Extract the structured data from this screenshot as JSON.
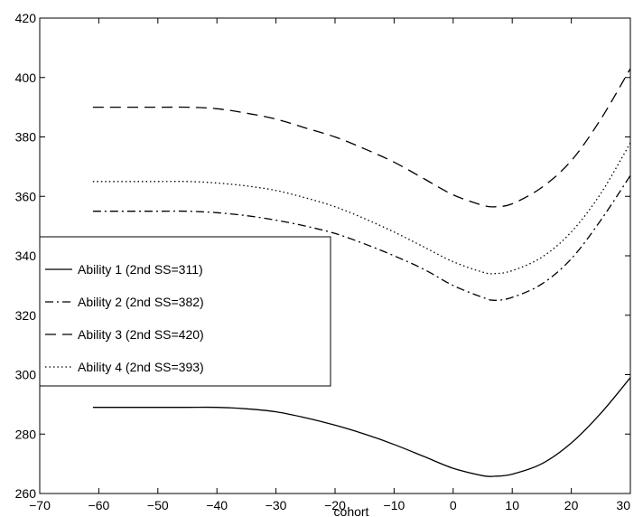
{
  "chart_data": {
    "type": "line",
    "title": "",
    "xlabel": "cohort",
    "ylabel": "",
    "xlim": [
      -70,
      30
    ],
    "ylim": [
      260,
      420
    ],
    "xticks": [
      -70,
      -60,
      -50,
      -40,
      -30,
      -20,
      -10,
      0,
      10,
      20,
      30
    ],
    "yticks": [
      260,
      280,
      300,
      320,
      340,
      360,
      380,
      400,
      420
    ],
    "grid": false,
    "legend_position": "middle-left",
    "series": [
      {
        "name": "Ability 1 (2nd SS=311)",
        "style": "solid",
        "color": "#000000",
        "x": [
          -61,
          -50,
          -45,
          -40,
          -35,
          -30,
          -25,
          -20,
          -15,
          -10,
          -5,
          0,
          5,
          7,
          10,
          15,
          20,
          25,
          30
        ],
        "y": [
          289,
          289,
          289,
          289,
          288.5,
          287.5,
          285.5,
          283,
          280,
          276.5,
          272.5,
          268.5,
          266,
          265.8,
          266.5,
          270,
          277,
          287,
          299
        ]
      },
      {
        "name": "Ability 2 (2nd SS=382)",
        "style": "dashdot",
        "color": "#000000",
        "x": [
          -61,
          -50,
          -45,
          -40,
          -35,
          -30,
          -25,
          -20,
          -15,
          -10,
          -5,
          0,
          5,
          7,
          10,
          15,
          20,
          25,
          30
        ],
        "y": [
          355,
          355,
          355,
          354.5,
          353.5,
          352,
          350,
          347.5,
          344,
          340,
          335.5,
          330,
          326,
          325,
          326,
          330.5,
          339,
          352,
          367
        ]
      },
      {
        "name": "Ability 3 (2nd SS=420)",
        "style": "dashed",
        "color": "#000000",
        "x": [
          -61,
          -50,
          -45,
          -40,
          -35,
          -30,
          -25,
          -20,
          -15,
          -10,
          -5,
          0,
          5,
          7,
          10,
          15,
          20,
          25,
          30
        ],
        "y": [
          390,
          390,
          390,
          389.5,
          388,
          386,
          383,
          380,
          376,
          371.5,
          366,
          360.5,
          357,
          356.5,
          357.5,
          363,
          372,
          386,
          403
        ]
      },
      {
        "name": "Ability 4 (2nd SS=393)",
        "style": "dotted",
        "color": "#000000",
        "x": [
          -61,
          -50,
          -45,
          -40,
          -35,
          -30,
          -25,
          -20,
          -15,
          -10,
          -5,
          0,
          5,
          7,
          10,
          15,
          20,
          25,
          30
        ],
        "y": [
          365,
          365,
          365,
          364.5,
          363.5,
          362,
          359.5,
          356.5,
          352.5,
          348,
          343,
          338,
          334.5,
          334,
          335,
          339.5,
          348,
          361,
          378
        ]
      }
    ]
  }
}
